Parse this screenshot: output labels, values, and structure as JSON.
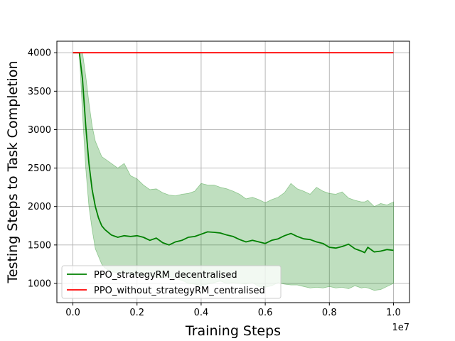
{
  "chart_data": {
    "type": "line",
    "xlabel": "Training Steps",
    "ylabel": "Testing Steps to Task Completion",
    "x_offset_label": "1e7",
    "xlim": [
      -0.05,
      1.05
    ],
    "ylim": [
      750,
      4150
    ],
    "x_ticks": [
      0.0,
      0.2,
      0.4,
      0.6,
      0.8,
      1.0
    ],
    "x_tick_labels": [
      "0.0",
      "0.2",
      "0.4",
      "0.6",
      "0.8",
      "1.0"
    ],
    "y_ticks": [
      1000,
      1500,
      2000,
      2500,
      3000,
      3500,
      4000
    ],
    "y_tick_labels": [
      "1000",
      "1500",
      "2000",
      "2500",
      "3000",
      "3500",
      "4000"
    ],
    "grid": true,
    "legend_position": "lower-left",
    "series": [
      {
        "name": "PPO_strategyRM_decentralised",
        "color": "#008000",
        "band_color": "#008000",
        "x": [
          0.0,
          0.02,
          0.03,
          0.04,
          0.05,
          0.06,
          0.07,
          0.08,
          0.09,
          0.1,
          0.12,
          0.14,
          0.16,
          0.18,
          0.2,
          0.22,
          0.24,
          0.26,
          0.28,
          0.3,
          0.32,
          0.34,
          0.36,
          0.38,
          0.4,
          0.42,
          0.44,
          0.46,
          0.48,
          0.5,
          0.52,
          0.54,
          0.56,
          0.58,
          0.6,
          0.62,
          0.64,
          0.66,
          0.68,
          0.7,
          0.72,
          0.74,
          0.76,
          0.78,
          0.8,
          0.82,
          0.84,
          0.86,
          0.88,
          0.9,
          0.91,
          0.92,
          0.94,
          0.96,
          0.98,
          1.0
        ],
        "mean": [
          4000,
          4000,
          3650,
          3050,
          2560,
          2220,
          2000,
          1850,
          1750,
          1700,
          1630,
          1600,
          1620,
          1610,
          1620,
          1600,
          1560,
          1590,
          1530,
          1500,
          1540,
          1560,
          1600,
          1610,
          1640,
          1670,
          1665,
          1655,
          1630,
          1610,
          1570,
          1540,
          1560,
          1540,
          1520,
          1560,
          1580,
          1620,
          1650,
          1610,
          1580,
          1570,
          1540,
          1520,
          1470,
          1460,
          1480,
          1510,
          1450,
          1420,
          1400,
          1470,
          1410,
          1420,
          1440,
          1430
        ],
        "upper": [
          4000,
          4000,
          4000,
          3700,
          3350,
          3050,
          2850,
          2750,
          2650,
          2620,
          2560,
          2500,
          2560,
          2400,
          2360,
          2280,
          2220,
          2230,
          2180,
          2150,
          2140,
          2160,
          2170,
          2200,
          2300,
          2280,
          2280,
          2250,
          2230,
          2200,
          2160,
          2100,
          2120,
          2090,
          2050,
          2090,
          2120,
          2180,
          2300,
          2230,
          2200,
          2160,
          2250,
          2200,
          2170,
          2160,
          2190,
          2110,
          2080,
          2060,
          2060,
          2080,
          2000,
          2040,
          2020,
          2060
        ],
        "lower": [
          4000,
          4000,
          3200,
          2500,
          2000,
          1700,
          1450,
          1350,
          1250,
          1200,
          1150,
          1140,
          1140,
          1120,
          1110,
          1100,
          1100,
          1080,
          1070,
          1090,
          1060,
          1040,
          1000,
          990,
          970,
          990,
          1010,
          1030,
          1000,
          1010,
          1000,
          990,
          1010,
          960,
          950,
          970,
          1010,
          990,
          980,
          980,
          960,
          940,
          950,
          940,
          960,
          940,
          950,
          930,
          970,
          940,
          950,
          940,
          910,
          920,
          960,
          1000
        ]
      },
      {
        "name": "PPO_without_strategyRM_centralised",
        "color": "#ff0000",
        "x": [
          0.0,
          1.0
        ],
        "mean": [
          4000,
          4000
        ]
      }
    ]
  }
}
